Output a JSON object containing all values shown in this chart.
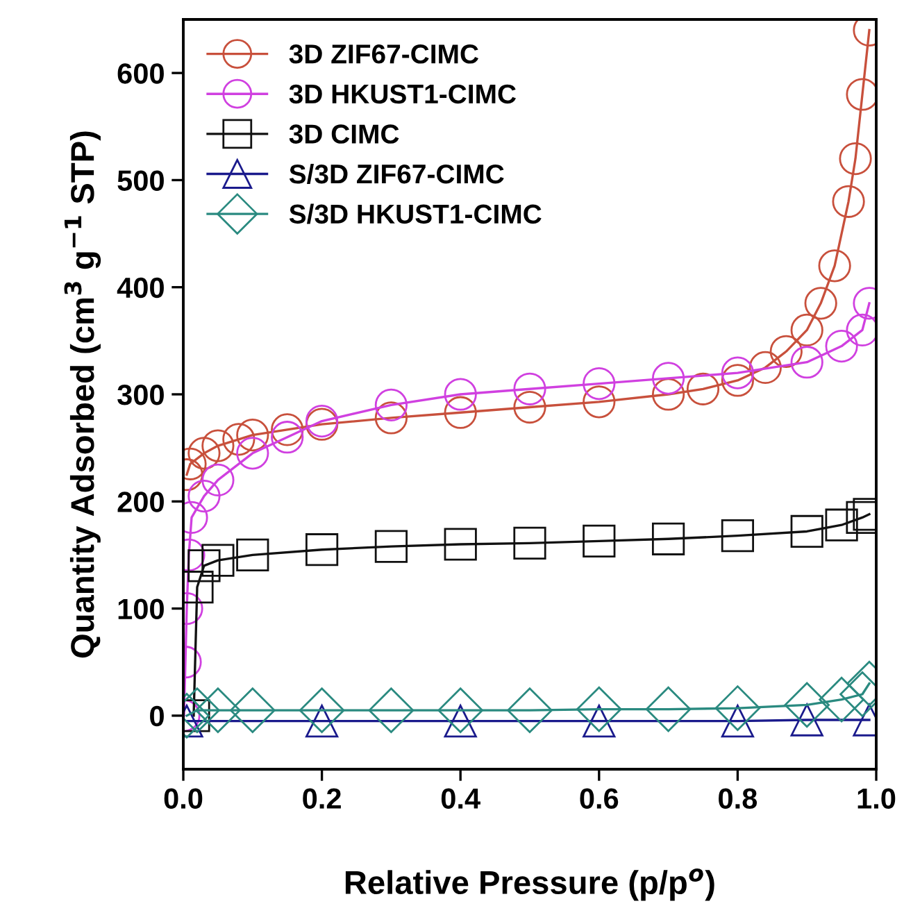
{
  "chart_data": {
    "type": "line",
    "xlabel": "Relative Pressure (p/p$^{o}$)",
    "ylabel": "Quantity Adsorbed (cm$^{3}$ g$^{−1}$ STP)",
    "xlim": [
      0,
      1
    ],
    "ylim": [
      -50,
      650
    ],
    "xticks": [
      {
        "value": 0,
        "label": "0.0"
      },
      0.2,
      0.4,
      0.6,
      0.8,
      {
        "value": 1,
        "label": "1.0"
      }
    ],
    "yticks": [
      0,
      100,
      200,
      300,
      400,
      500,
      600
    ],
    "grid": false,
    "legend": "top left",
    "line_style": "solid",
    "series": [
      {
        "name": "3D ZIF67-CIMC",
        "color": "#c8503c",
        "marker": "circle",
        "x": [
          0.005,
          0.01,
          0.03,
          0.05,
          0.08,
          0.1,
          0.15,
          0.2,
          0.3,
          0.4,
          0.5,
          0.6,
          0.7,
          0.75,
          0.8,
          0.84,
          0.87,
          0.9,
          0.92,
          0.94,
          0.96,
          0.97,
          0.98,
          0.99
        ],
        "values": [
          225,
          235,
          245,
          252,
          258,
          262,
          267,
          272,
          278,
          283,
          288,
          293,
          300,
          305,
          313,
          325,
          340,
          360,
          385,
          420,
          480,
          520,
          580,
          640
        ]
      },
      {
        "name": "3D HKUST1-CIMC",
        "color": "#d040e0",
        "marker": "circle",
        "x": [
          0.001,
          0.003,
          0.005,
          0.008,
          0.012,
          0.03,
          0.05,
          0.1,
          0.15,
          0.2,
          0.3,
          0.4,
          0.5,
          0.6,
          0.7,
          0.8,
          0.9,
          0.95,
          0.98,
          0.99
        ],
        "values": [
          0,
          50,
          100,
          150,
          185,
          205,
          220,
          245,
          260,
          275,
          290,
          300,
          305,
          310,
          315,
          320,
          330,
          345,
          360,
          385
        ]
      },
      {
        "name": "3D CIMC",
        "color": "#111111",
        "marker": "square",
        "x": [
          0.015,
          0.02,
          0.03,
          0.05,
          0.1,
          0.2,
          0.3,
          0.4,
          0.5,
          0.6,
          0.7,
          0.8,
          0.9,
          0.95,
          0.98,
          0.99
        ],
        "values": [
          0,
          120,
          140,
          145,
          150,
          155,
          158,
          160,
          161,
          163,
          165,
          168,
          172,
          178,
          185,
          188
        ]
      },
      {
        "name": "S/3D ZIF67-CIMC",
        "color": "#1a1a8c",
        "marker": "triangle",
        "x": [
          0.005,
          0.2,
          0.4,
          0.6,
          0.8,
          0.9,
          0.99
        ],
        "values": [
          -5,
          -5,
          -5,
          -5,
          -5,
          -4,
          -4
        ]
      },
      {
        "name": "S/3D HKUST1-CIMC",
        "color": "#2a8a80",
        "marker": "diamond",
        "x": [
          0.005,
          0.02,
          0.05,
          0.1,
          0.2,
          0.3,
          0.4,
          0.5,
          0.6,
          0.7,
          0.8,
          0.9,
          0.95,
          0.98,
          0.99
        ],
        "values": [
          0,
          5,
          5,
          5,
          5,
          5,
          5,
          5,
          6,
          6,
          7,
          10,
          15,
          20,
          30
        ]
      }
    ]
  }
}
